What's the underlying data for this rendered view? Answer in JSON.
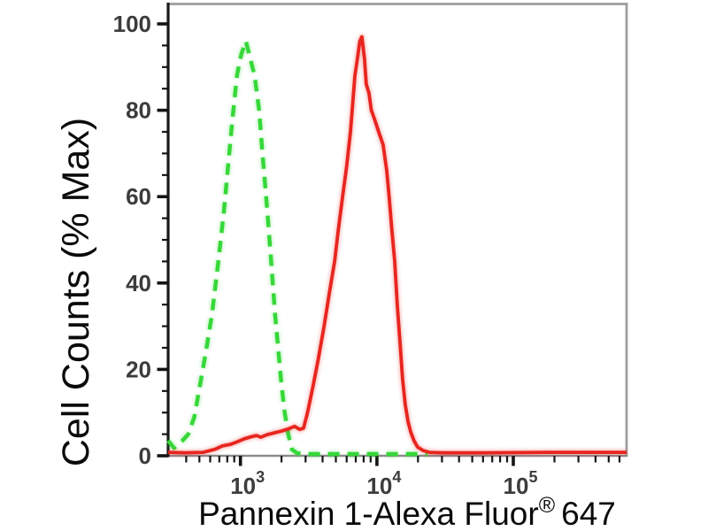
{
  "page": {
    "background": "#ffffff"
  },
  "chart_data": {
    "type": "line",
    "subtype": "flow-cytometry-histogram",
    "title": "",
    "xlabel": "Pannexin 1-Alexa Fluor® 647",
    "xlabel_parts": {
      "main": "Pannexin 1-Alexa Fluor",
      "sup": "®",
      "suffix": "647"
    },
    "ylabel": "Cell Counts (% Max)",
    "x_scale": "log",
    "x_log_range": [
      2.47,
      5.83
    ],
    "x_major_ticks": [
      {
        "base": "10",
        "exponent": "3"
      },
      {
        "base": "10",
        "exponent": "4"
      },
      {
        "base": "10",
        "exponent": "5"
      }
    ],
    "x_minor_tick_decades": [
      2,
      3,
      4,
      5
    ],
    "y_range": [
      0,
      100
    ],
    "y_major_step": 20,
    "y_minor_step": 5,
    "y_tick_labels": [
      "0",
      "20",
      "40",
      "60",
      "80",
      "100"
    ],
    "grid": false,
    "legend": "none",
    "colors": {
      "red_curve": "#e8251f",
      "green_curve": "#35d838",
      "axis": "#1a1a1a",
      "frame": "#9e9e9e",
      "baseline": "#8c8c8c",
      "tick": "#141414",
      "tick_label": "#3c3c3c",
      "title_text": "#0a0a0a"
    },
    "series": [
      {
        "name": "control-green-dashed",
        "style": "dashed",
        "color": "#35d838",
        "peak": {
          "x": 1095,
          "pct": 96
        },
        "points": [
          [
            294,
            3.5
          ],
          [
            326,
            1.8
          ],
          [
            378,
            3.6
          ],
          [
            414,
            5
          ],
          [
            459,
            9
          ],
          [
            503,
            16
          ],
          [
            558,
            24
          ],
          [
            620,
            33
          ],
          [
            688,
            45
          ],
          [
            753,
            56
          ],
          [
            811,
            67
          ],
          [
            874,
            78
          ],
          [
            942,
            88
          ],
          [
            1015,
            93
          ],
          [
            1095,
            96
          ],
          [
            1180,
            92
          ],
          [
            1270,
            88
          ],
          [
            1370,
            80
          ],
          [
            1450,
            70
          ],
          [
            1570,
            57
          ],
          [
            1690,
            44
          ],
          [
            1790,
            33
          ],
          [
            1900,
            24
          ],
          [
            1990,
            17
          ],
          [
            2110,
            10
          ],
          [
            2240,
            5
          ],
          [
            2380,
            1.5
          ],
          [
            2600,
            0.6
          ],
          [
            3000,
            0.4
          ],
          [
            5000,
            0.4
          ],
          [
            9000,
            0.4
          ],
          [
            14000,
            0.4
          ],
          [
            19000,
            0.4
          ],
          [
            23500,
            0.4
          ]
        ]
      },
      {
        "name": "pannexin1-red-solid",
        "style": "solid",
        "color": "#e8251f",
        "peak": {
          "x": 7760,
          "pct": 97
        },
        "points": [
          [
            294,
            0.8
          ],
          [
            395,
            0.7
          ],
          [
            533,
            0.8
          ],
          [
            648,
            1.5
          ],
          [
            741,
            2.3
          ],
          [
            836,
            2.6
          ],
          [
            942,
            3.2
          ],
          [
            1060,
            3.9
          ],
          [
            1200,
            4.4
          ],
          [
            1310,
            4.7
          ],
          [
            1410,
            4.3
          ],
          [
            1570,
            4.9
          ],
          [
            1770,
            5.3
          ],
          [
            1990,
            5.7
          ],
          [
            2240,
            6.2
          ],
          [
            2490,
            6.8
          ],
          [
            2720,
            6.1
          ],
          [
            2900,
            6.4
          ],
          [
            3100,
            10
          ],
          [
            3400,
            16
          ],
          [
            3700,
            22
          ],
          [
            4100,
            30
          ],
          [
            4500,
            38
          ],
          [
            4900,
            45
          ],
          [
            5200,
            52
          ],
          [
            5600,
            60
          ],
          [
            6000,
            67
          ],
          [
            6400,
            75
          ],
          [
            6700,
            83
          ],
          [
            6900,
            88
          ],
          [
            7200,
            92
          ],
          [
            7500,
            96
          ],
          [
            7760,
            97
          ],
          [
            8100,
            92
          ],
          [
            8360,
            86
          ],
          [
            8750,
            84
          ],
          [
            9100,
            80
          ],
          [
            9600,
            78
          ],
          [
            10300,
            75
          ],
          [
            11100,
            72
          ],
          [
            11800,
            66
          ],
          [
            12300,
            60
          ],
          [
            12900,
            52
          ],
          [
            13500,
            45
          ],
          [
            14100,
            35
          ],
          [
            14800,
            26
          ],
          [
            15400,
            18
          ],
          [
            16100,
            12
          ],
          [
            16900,
            8
          ],
          [
            17700,
            5.5
          ],
          [
            18700,
            3.5
          ],
          [
            19900,
            2
          ],
          [
            21800,
            1.2
          ],
          [
            24200,
            0.8
          ],
          [
            30000,
            0.7
          ],
          [
            64000,
            0.7
          ],
          [
            180000,
            0.8
          ],
          [
            680000,
            0.8
          ]
        ]
      }
    ]
  }
}
